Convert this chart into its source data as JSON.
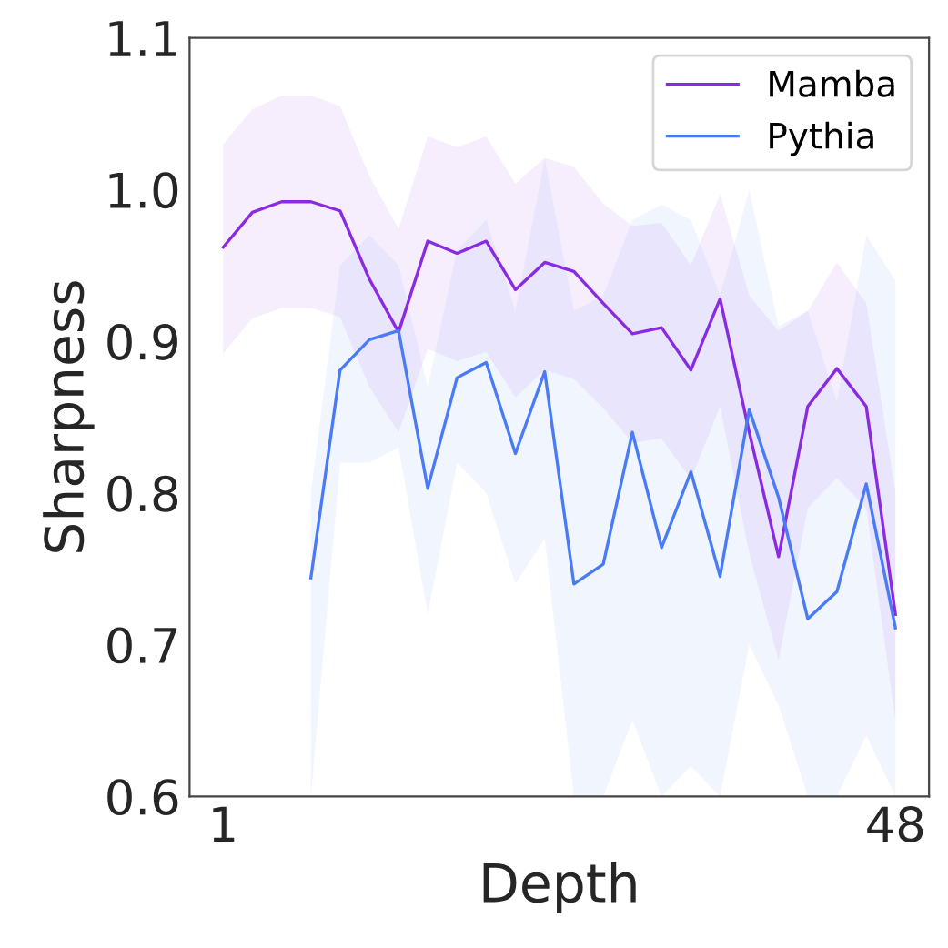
{
  "chart_data": {
    "type": "line",
    "xlabel": "Depth",
    "ylabel": "Sharpness",
    "x": [
      1,
      3.04,
      5.09,
      7.13,
      9.17,
      11.22,
      13.26,
      15.3,
      17.35,
      19.39,
      21.43,
      23.48,
      25.52,
      27.57,
      29.61,
      31.65,
      33.7,
      35.74,
      37.78,
      39.83,
      41.87,
      43.91,
      45.96,
      48
    ],
    "series": [
      {
        "name": "Mamba",
        "color": "#8a2be2",
        "values": [
          0.962,
          0.985,
          0.992,
          0.992,
          0.986,
          0.941,
          0.906,
          0.966,
          0.958,
          0.966,
          0.934,
          0.952,
          0.946,
          0.925,
          0.905,
          0.909,
          0.881,
          0.928,
          0.84,
          0.758,
          0.857,
          0.882,
          0.857,
          0.72
        ],
        "upper": [
          1.03,
          1.053,
          1.062,
          1.062,
          1.055,
          1.009,
          0.974,
          1.035,
          1.028,
          1.035,
          1.004,
          1.021,
          1.015,
          0.991,
          0.976,
          0.978,
          0.95,
          0.997,
          0.93,
          0.907,
          0.92,
          0.952,
          0.925,
          0.8
        ],
        "lower": [
          0.892,
          0.915,
          0.922,
          0.922,
          0.916,
          0.87,
          0.84,
          0.895,
          0.887,
          0.893,
          0.863,
          0.881,
          0.875,
          0.856,
          0.833,
          0.836,
          0.809,
          0.857,
          0.76,
          0.69,
          0.79,
          0.81,
          0.79,
          0.65
        ]
      },
      {
        "name": "Pythia",
        "color": "#4a7bf7",
        "values": [
          null,
          null,
          null,
          0.744,
          0.881,
          0.901,
          0.907,
          0.803,
          0.876,
          0.886,
          0.826,
          0.88,
          0.74,
          0.753,
          0.84,
          0.764,
          0.814,
          0.745,
          0.855,
          0.797,
          0.717,
          0.735,
          0.806,
          0.711
        ],
        "upper": [
          null,
          null,
          null,
          0.8,
          0.95,
          0.97,
          0.95,
          0.87,
          0.96,
          0.98,
          0.92,
          1.02,
          0.92,
          0.93,
          0.98,
          0.99,
          0.98,
          0.93,
          1.0,
          0.91,
          0.92,
          0.86,
          0.97,
          0.94
        ],
        "lower": [
          null,
          null,
          null,
          0.6,
          0.82,
          0.82,
          0.83,
          0.72,
          0.82,
          0.8,
          0.74,
          0.77,
          0.6,
          0.6,
          0.65,
          0.6,
          0.62,
          0.6,
          0.7,
          0.66,
          0.6,
          0.6,
          0.64,
          0.6
        ]
      }
    ],
    "xlim": [
      -1.35,
      50.35
    ],
    "xticks": [
      1,
      48
    ],
    "ylim": [
      0.6,
      1.1
    ],
    "yticks": [
      0.6,
      0.7,
      0.8,
      0.9,
      {
        "value": 1,
        "label": "1.0"
      },
      1.1
    ],
    "grid": false,
    "legend": "top right",
    "line_style": "solid",
    "marker": "none"
  }
}
